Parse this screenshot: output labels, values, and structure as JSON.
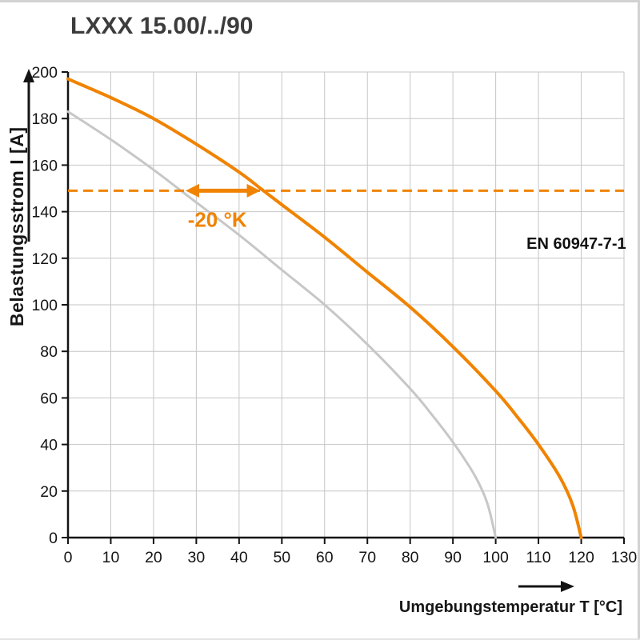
{
  "chart_data": {
    "type": "line",
    "title": "LXXX 15.00/../90",
    "xlabel": "Umgebungstemperatur T [°C]",
    "ylabel": "Belastungsstrom I [A]",
    "xlim": [
      0,
      130
    ],
    "ylim": [
      0,
      200
    ],
    "x_ticks": [
      0,
      10,
      20,
      30,
      40,
      50,
      60,
      70,
      80,
      90,
      100,
      110,
      120,
      130
    ],
    "y_ticks": [
      0,
      20,
      40,
      60,
      80,
      100,
      120,
      140,
      160,
      180,
      200
    ],
    "grid": true,
    "grid_color": "#c6c6c6",
    "axis_color": "#141414",
    "legend": "none",
    "series": [
      {
        "name": "reference-curve-gray",
        "color": "#c7c7c7",
        "width": 3,
        "points": [
          [
            0,
            183
          ],
          [
            10,
            171
          ],
          [
            20,
            158
          ],
          [
            25,
            151
          ],
          [
            30,
            144
          ],
          [
            40,
            130
          ],
          [
            50,
            115
          ],
          [
            60,
            100
          ],
          [
            70,
            83
          ],
          [
            80,
            64
          ],
          [
            85,
            53
          ],
          [
            90,
            41
          ],
          [
            95,
            27
          ],
          [
            98,
            15
          ],
          [
            100,
            0
          ]
        ]
      },
      {
        "name": "derating-curve-orange",
        "color": "#f08300",
        "width": 4,
        "points": [
          [
            0,
            197
          ],
          [
            10,
            189
          ],
          [
            20,
            180
          ],
          [
            30,
            169
          ],
          [
            40,
            157
          ],
          [
            45,
            150
          ],
          [
            50,
            143
          ],
          [
            60,
            129
          ],
          [
            70,
            114
          ],
          [
            80,
            99
          ],
          [
            90,
            82
          ],
          [
            100,
            63
          ],
          [
            105,
            52
          ],
          [
            110,
            40
          ],
          [
            115,
            26
          ],
          [
            118,
            14
          ],
          [
            120,
            0
          ]
        ]
      }
    ],
    "annotations": {
      "dashed_line": {
        "y": 149,
        "color": "#f08300"
      },
      "delta_arrow": {
        "y": 149,
        "x1": 27.5,
        "x2": 45,
        "color": "#f08300"
      },
      "delta_label": {
        "text": "-20 °K",
        "x": 28,
        "y": 133.5,
        "color": "#f08300"
      },
      "standard_label": {
        "text": "EN 60947-7-1",
        "x": 130.5,
        "y": 124,
        "color": "#111111"
      }
    }
  }
}
